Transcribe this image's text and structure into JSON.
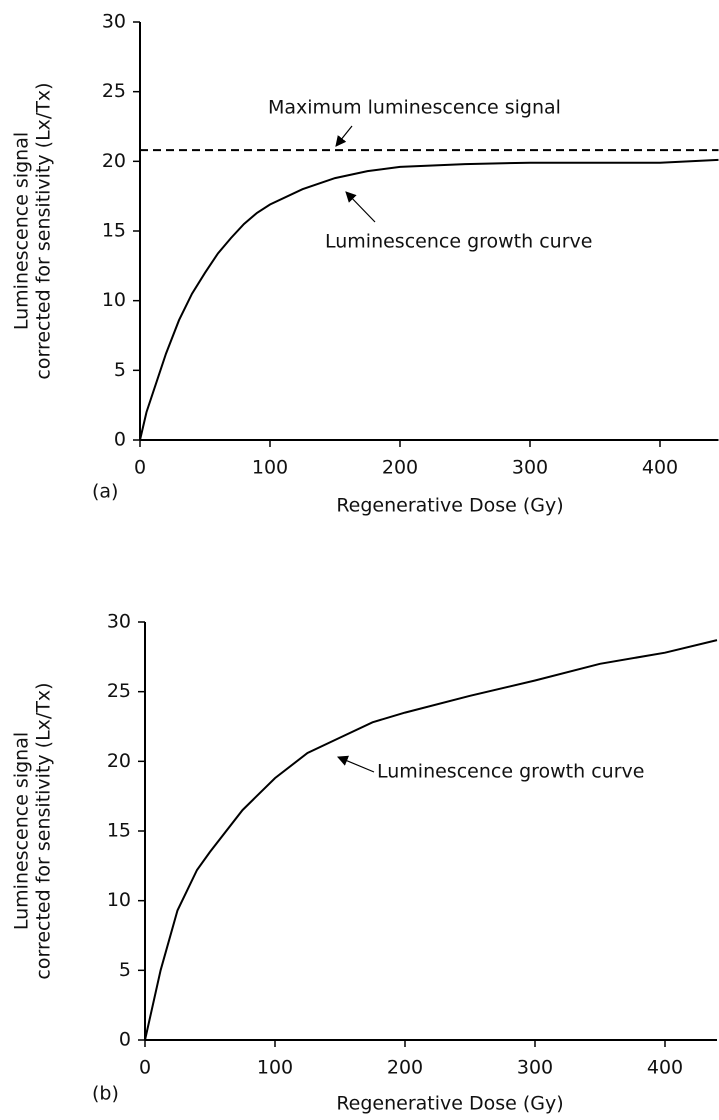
{
  "chart_data": [
    {
      "type": "line",
      "panel_label": "(a)",
      "xlabel": "Regenerative Dose (Gy)",
      "ylabel": [
        "Luminescence signal",
        "corrected for sensitivity (Lx/Tx)"
      ],
      "xlim": [
        0,
        445
      ],
      "ylim": [
        0,
        30
      ],
      "xticks": [
        0,
        100,
        200,
        300,
        400
      ],
      "yticks": [
        0,
        5,
        10,
        15,
        20,
        25,
        30
      ],
      "series": [
        {
          "color": "#000000",
          "x": [
            0,
            5,
            10,
            20,
            30,
            40,
            50,
            60,
            70,
            80,
            90,
            100,
            125,
            150,
            175,
            200,
            250,
            300,
            350,
            400,
            445
          ],
          "values": [
            0,
            2.0,
            3.4,
            6.2,
            8.6,
            10.5,
            12.0,
            13.4,
            14.5,
            15.5,
            16.3,
            16.9,
            18.0,
            18.8,
            19.3,
            19.6,
            19.8,
            19.9,
            19.9,
            19.9,
            20.1
          ]
        }
      ],
      "reference_line": {
        "value": 20.8,
        "style": "dashed",
        "color": "#000000"
      },
      "annotations": [
        "Maximum luminescence signal",
        "Luminescence growth curve"
      ]
    },
    {
      "type": "line",
      "panel_label": "(b)",
      "xlabel": "Regenerative Dose (Gy)",
      "ylabel": [
        "Luminescence signal",
        "corrected for sensitivity (Lx/Tx)"
      ],
      "xlim": [
        0,
        440
      ],
      "ylim": [
        0,
        30
      ],
      "xticks": [
        0,
        100,
        200,
        300,
        400
      ],
      "yticks": [
        0,
        5,
        10,
        15,
        20,
        25,
        30
      ],
      "series": [
        {
          "color": "#000000",
          "x": [
            0,
            12,
            25,
            40,
            50,
            75,
            100,
            125,
            150,
            175,
            200,
            250,
            300,
            350,
            400,
            440
          ],
          "values": [
            0,
            5.0,
            9.3,
            12.2,
            13.5,
            16.5,
            18.8,
            20.6,
            21.7,
            22.8,
            23.5,
            24.7,
            25.8,
            27.0,
            27.8,
            28.7
          ]
        }
      ],
      "annotations": [
        "Luminescence growth curve"
      ]
    }
  ]
}
